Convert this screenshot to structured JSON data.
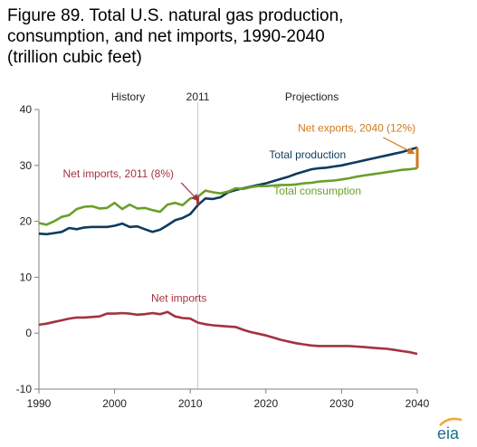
{
  "figure": {
    "title": "Figure 89. Total U.S. natural gas production, consumption, and net imports, 1990-2040 (trillion cubic feet)"
  },
  "logo": {
    "text": "eia",
    "icon": "eia-logo-icon",
    "color": "#1f6f8b"
  },
  "chart_data": {
    "type": "line",
    "title": "Figure 89. Total U.S. natural gas production, consumption, and net imports, 1990-2040 (trillion cubic feet)",
    "xlim": [
      1990,
      2040
    ],
    "ylim": [
      -10,
      40
    ],
    "x_ticks": [
      "1990",
      "2000",
      "2010",
      "2020",
      "2030",
      "2040"
    ],
    "y_ticks": [
      "-10",
      "0",
      "10",
      "20",
      "30",
      "40"
    ],
    "grid": false,
    "divider": {
      "x": 2011,
      "label": "2011",
      "left_label": "History",
      "right_label": "Projections"
    },
    "series": [
      {
        "name": "Total production",
        "color": "#0d3b5e",
        "x": [
          1990,
          1991,
          1992,
          1993,
          1994,
          1995,
          1996,
          1997,
          1998,
          1999,
          2000,
          2001,
          2002,
          2003,
          2004,
          2005,
          2006,
          2007,
          2008,
          2009,
          2010,
          2011,
          2012,
          2013,
          2014,
          2015,
          2016,
          2017,
          2018,
          2019,
          2020,
          2021,
          2022,
          2023,
          2024,
          2025,
          2026,
          2027,
          2028,
          2029,
          2030,
          2031,
          2032,
          2033,
          2034,
          2035,
          2036,
          2037,
          2038,
          2039,
          2040
        ],
        "values": [
          17.8,
          17.7,
          17.9,
          18.1,
          18.8,
          18.6,
          18.9,
          19.0,
          19.0,
          19.0,
          19.2,
          19.6,
          19.0,
          19.1,
          18.6,
          18.1,
          18.5,
          19.3,
          20.2,
          20.6,
          21.3,
          22.9,
          24.1,
          24.0,
          24.3,
          25.2,
          25.6,
          25.9,
          26.2,
          26.5,
          26.8,
          27.2,
          27.6,
          28.0,
          28.5,
          28.9,
          29.3,
          29.5,
          29.6,
          29.8,
          30.0,
          30.3,
          30.6,
          30.9,
          31.2,
          31.5,
          31.8,
          32.1,
          32.4,
          32.8,
          33.2
        ]
      },
      {
        "name": "Total consumption",
        "color": "#6a9f2a",
        "x": [
          1990,
          1991,
          1992,
          1993,
          1994,
          1995,
          1996,
          1997,
          1998,
          1999,
          2000,
          2001,
          2002,
          2003,
          2004,
          2005,
          2006,
          2007,
          2008,
          2009,
          2010,
          2011,
          2012,
          2013,
          2014,
          2015,
          2016,
          2017,
          2018,
          2019,
          2020,
          2021,
          2022,
          2023,
          2024,
          2025,
          2026,
          2027,
          2028,
          2029,
          2030,
          2031,
          2032,
          2033,
          2034,
          2035,
          2036,
          2037,
          2038,
          2039,
          2040
        ],
        "values": [
          19.7,
          19.4,
          20.0,
          20.8,
          21.1,
          22.2,
          22.6,
          22.7,
          22.3,
          22.4,
          23.3,
          22.2,
          23.0,
          22.3,
          22.4,
          22.0,
          21.7,
          23.0,
          23.3,
          22.9,
          24.1,
          24.4,
          25.5,
          25.2,
          25.0,
          25.3,
          25.9,
          25.8,
          26.1,
          26.3,
          26.3,
          26.4,
          26.5,
          26.5,
          26.6,
          26.8,
          26.9,
          27.1,
          27.2,
          27.3,
          27.5,
          27.7,
          28.0,
          28.2,
          28.4,
          28.6,
          28.8,
          29.0,
          29.2,
          29.3,
          29.5
        ]
      },
      {
        "name": "Net imports",
        "color": "#a3323f",
        "x": [
          1990,
          1991,
          1992,
          1993,
          1994,
          1995,
          1996,
          1997,
          1998,
          1999,
          2000,
          2001,
          2002,
          2003,
          2004,
          2005,
          2006,
          2007,
          2008,
          2009,
          2010,
          2011,
          2012,
          2013,
          2014,
          2015,
          2016,
          2017,
          2018,
          2019,
          2020,
          2021,
          2022,
          2023,
          2024,
          2025,
          2026,
          2027,
          2028,
          2029,
          2030,
          2031,
          2032,
          2033,
          2034,
          2035,
          2036,
          2037,
          2038,
          2039,
          2040
        ],
        "values": [
          1.5,
          1.7,
          2.0,
          2.3,
          2.6,
          2.8,
          2.8,
          2.9,
          3.0,
          3.5,
          3.5,
          3.6,
          3.5,
          3.3,
          3.4,
          3.6,
          3.4,
          3.8,
          3.0,
          2.7,
          2.6,
          1.9,
          1.6,
          1.4,
          1.3,
          1.2,
          1.1,
          0.6,
          0.2,
          -0.1,
          -0.4,
          -0.8,
          -1.2,
          -1.5,
          -1.8,
          -2.0,
          -2.2,
          -2.3,
          -2.3,
          -2.3,
          -2.3,
          -2.3,
          -2.4,
          -2.5,
          -2.6,
          -2.7,
          -2.8,
          -3.0,
          -3.2,
          -3.4,
          -3.7
        ]
      }
    ],
    "annotations": [
      {
        "text": "Net imports, 2011 (8%)",
        "color": "#a3323f",
        "x": 2011,
        "y1": 22.9,
        "y2": 24.4
      },
      {
        "text": "Net exports, 2040 (12%)",
        "color": "#d07a1e",
        "x": 2040,
        "y1": 29.5,
        "y2": 33.2
      }
    ]
  }
}
